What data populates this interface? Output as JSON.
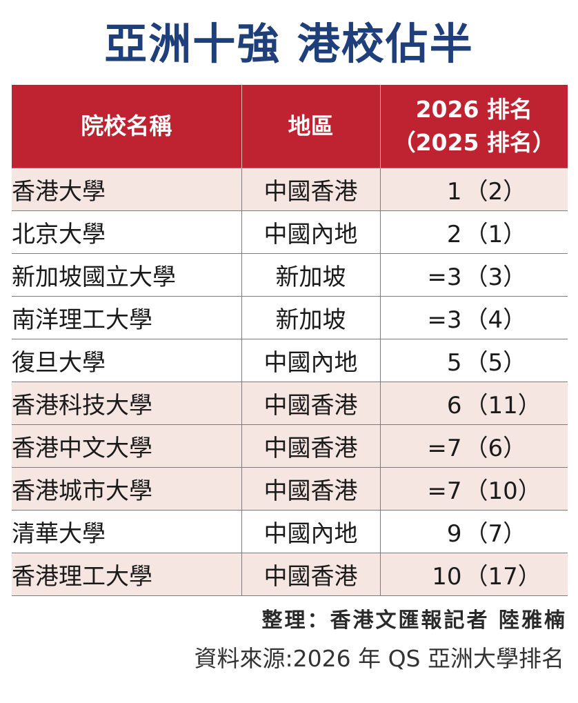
{
  "title": "亞洲十強 港校佔半",
  "table": {
    "headers": {
      "name": "院校名稱",
      "region": "地區",
      "rank_line1": "2026 排名",
      "rank_line2": "（2025 排名）"
    },
    "rows": [
      {
        "name": "香港大學",
        "region": "中國香港",
        "rank2026": "1",
        "rank2025": "（2）",
        "highlight": true
      },
      {
        "name": "北京大學",
        "region": "中國內地",
        "rank2026": "2",
        "rank2025": "（1）",
        "highlight": false
      },
      {
        "name": "新加坡國立大學",
        "region": "新加坡",
        "rank2026": "=3",
        "rank2025": "（3）",
        "highlight": false
      },
      {
        "name": "南洋理工大學",
        "region": "新加坡",
        "rank2026": "=3",
        "rank2025": "（4）",
        "highlight": false
      },
      {
        "name": "復旦大學",
        "region": "中國內地",
        "rank2026": "5",
        "rank2025": "（5）",
        "highlight": false
      },
      {
        "name": "香港科技大學",
        "region": "中國香港",
        "rank2026": "6",
        "rank2025": "（11）",
        "highlight": true
      },
      {
        "name": "香港中文大學",
        "region": "中國香港",
        "rank2026": "=7",
        "rank2025": "（6）",
        "highlight": true
      },
      {
        "name": "香港城市大學",
        "region": "中國香港",
        "rank2026": "=7",
        "rank2025": "（10）",
        "highlight": true
      },
      {
        "name": "清華大學",
        "region": "中國內地",
        "rank2026": "9",
        "rank2025": "（7）",
        "highlight": false
      },
      {
        "name": "香港理工大學",
        "region": "中國香港",
        "rank2026": "10",
        "rank2025": "（17）",
        "highlight": true
      }
    ]
  },
  "credit": "整理：香港文匯報記者 陸雅楠",
  "source": "資料來源:2026 年 QS 亞洲大學排名",
  "colors": {
    "title": "#1f3f7a",
    "header_bg": "#bf2230",
    "highlight_row": "#f6e6e2"
  },
  "chart_data": {
    "type": "table",
    "title": "亞洲十強 港校佔半",
    "columns": [
      "院校名稱",
      "地區",
      "2026 排名（2025 排名）"
    ],
    "rows": [
      [
        "香港大學",
        "中國香港",
        "1（2）"
      ],
      [
        "北京大學",
        "中國內地",
        "2（1）"
      ],
      [
        "新加坡國立大學",
        "新加坡",
        "=3（3）"
      ],
      [
        "南洋理工大學",
        "新加坡",
        "=3（4）"
      ],
      [
        "復旦大學",
        "中國內地",
        "5（5）"
      ],
      [
        "香港科技大學",
        "中國香港",
        "6（11）"
      ],
      [
        "香港中文大學",
        "中國香港",
        "=7（6）"
      ],
      [
        "香港城市大學",
        "中國香港",
        "=7（10）"
      ],
      [
        "清華大學",
        "中國內地",
        "9（7）"
      ],
      [
        "香港理工大學",
        "中國香港",
        "10（17）"
      ]
    ]
  }
}
